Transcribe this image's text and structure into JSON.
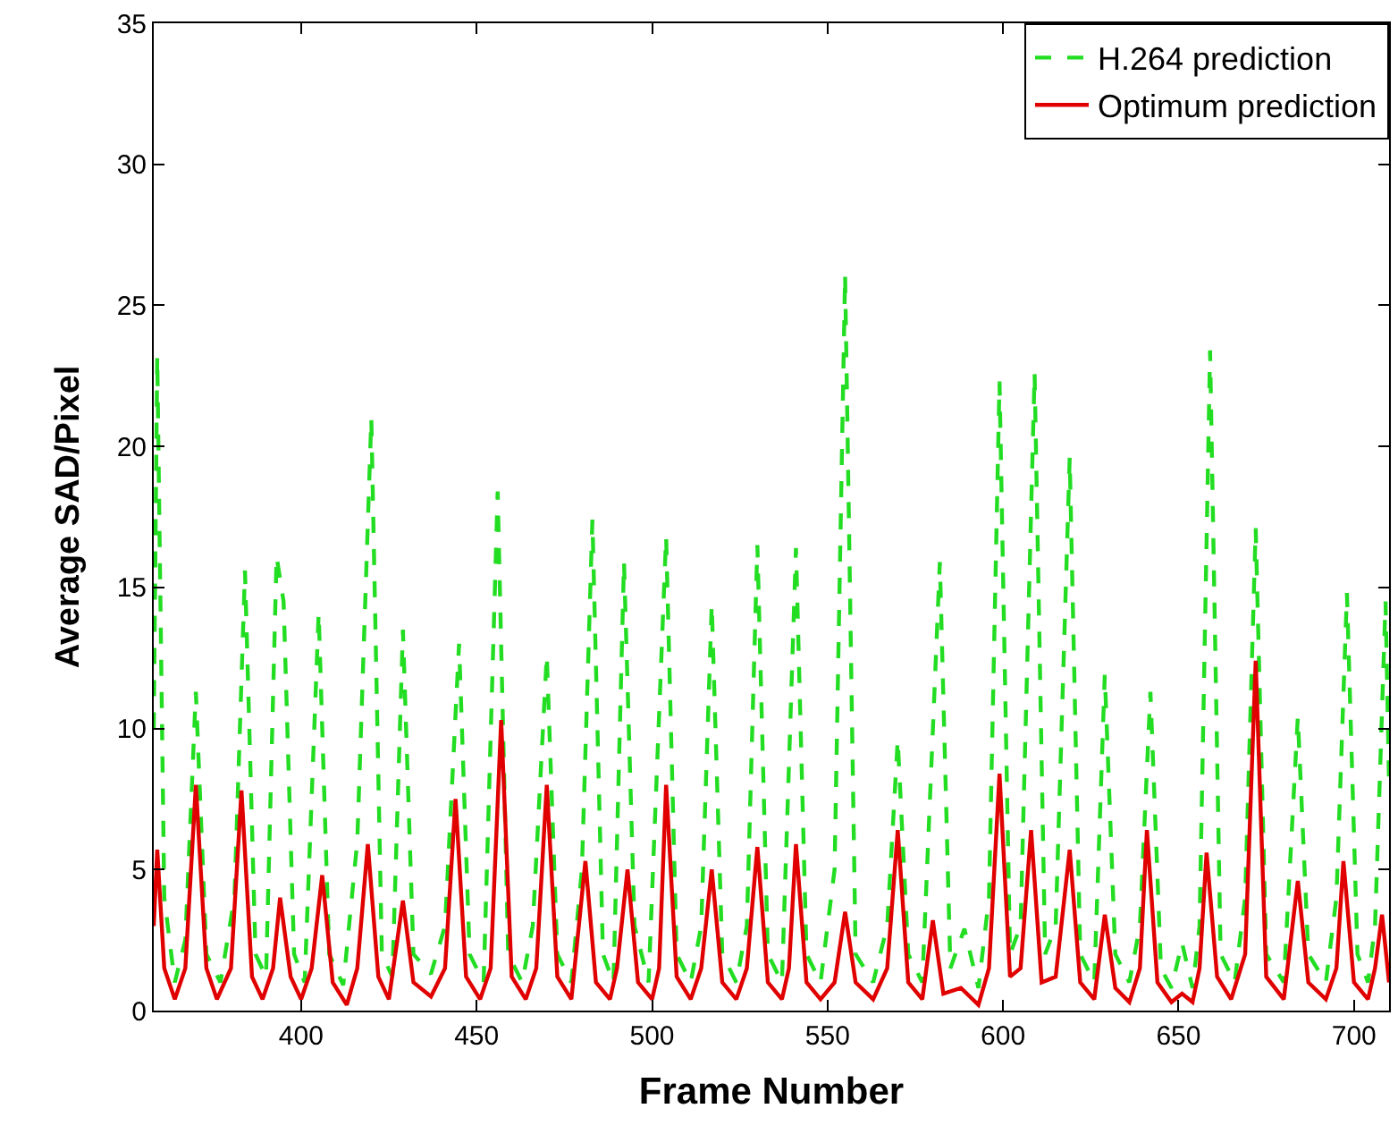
{
  "chart_data": {
    "type": "line",
    "xlabel": "Frame Number",
    "ylabel": "Average SAD/Pixel",
    "xlim": [
      358,
      710
    ],
    "xticks": [
      400,
      450,
      500,
      550,
      600,
      650,
      700
    ],
    "ylim": [
      0,
      35
    ],
    "yticks": [
      0,
      5,
      10,
      15,
      20,
      25,
      30,
      35
    ],
    "legend": "top right",
    "marker": "none",
    "series": [
      {
        "name": "H.264 prediction",
        "color": "#22dd22",
        "line_style": "dashed",
        "x": [
          358,
          359,
          361,
          364,
          367,
          370,
          373,
          377,
          381,
          384,
          387,
          390,
          393,
          395,
          398,
          401,
          405,
          408,
          412,
          416,
          420,
          423,
          426,
          429,
          432,
          437,
          441,
          445,
          448,
          452,
          456,
          459,
          463,
          466,
          470,
          473,
          477,
          480,
          483,
          486,
          489,
          492,
          495,
          499,
          504,
          507,
          511,
          514,
          517,
          520,
          524,
          527,
          530,
          533,
          537,
          541,
          544,
          548,
          552,
          555,
          558,
          563,
          567,
          570,
          573,
          577,
          582,
          585,
          589,
          593,
          596,
          599,
          602,
          605,
          609,
          612,
          615,
          619,
          622,
          626,
          629,
          632,
          636,
          639,
          642,
          645,
          648,
          651,
          654,
          656,
          659,
          662,
          666,
          669,
          672,
          675,
          680,
          684,
          687,
          692,
          695,
          698,
          701,
          704,
          706,
          709,
          710
        ],
        "values": [
          10,
          23.2,
          4,
          1.0,
          2.5,
          11.3,
          2,
          1.0,
          4,
          15.6,
          2,
          1.2,
          16.1,
          14.5,
          2,
          1.0,
          14.1,
          2,
          0.9,
          6,
          21.0,
          2,
          1.2,
          13.5,
          2,
          1.3,
          3,
          13.0,
          2,
          1.0,
          18.4,
          2,
          1.0,
          3,
          12.6,
          2,
          1.0,
          5,
          17.4,
          2,
          1.0,
          15.9,
          3,
          1.0,
          16.8,
          2,
          1.0,
          3,
          14.4,
          2,
          1.0,
          3,
          16.5,
          2,
          1.0,
          16.4,
          2,
          1.0,
          5,
          26.1,
          2,
          1.0,
          3,
          9.6,
          2,
          1.0,
          15.9,
          1.5,
          2.9,
          0.8,
          4,
          22.3,
          2,
          3,
          22.6,
          2,
          3,
          19.6,
          2,
          1.0,
          11.9,
          2,
          1.0,
          3,
          11.3,
          1.5,
          0.8,
          2.4,
          0.8,
          3,
          23.4,
          2,
          1.0,
          4,
          17.1,
          2,
          1.0,
          10.4,
          2,
          1.0,
          4,
          14.8,
          2,
          1.0,
          3,
          14.5,
          8
        ]
      },
      {
        "name": "Optimum prediction",
        "color": "#e00000",
        "line_style": "solid",
        "x": [
          358,
          359,
          361,
          364,
          367,
          370,
          373,
          376,
          380,
          383,
          386,
          389,
          392,
          394,
          397,
          400,
          403,
          406,
          409,
          413,
          416,
          419,
          422,
          425,
          429,
          432,
          437,
          441,
          444,
          447,
          451,
          454,
          457,
          460,
          464,
          467,
          470,
          473,
          477,
          481,
          484,
          488,
          490,
          493,
          496,
          500,
          502,
          504,
          507,
          511,
          514,
          517,
          520,
          524,
          527,
          530,
          533,
          537,
          539,
          541,
          544,
          548,
          552,
          555,
          558,
          563,
          567,
          570,
          573,
          577,
          580,
          583,
          588,
          593,
          596,
          599,
          602,
          605,
          608,
          611,
          615,
          619,
          622,
          626,
          629,
          632,
          636,
          639,
          641,
          644,
          648,
          651,
          654,
          656,
          658,
          661,
          665,
          669,
          672,
          675,
          680,
          684,
          687,
          692,
          695,
          697,
          700,
          704,
          706,
          708,
          710
        ],
        "values": [
          3,
          5.7,
          1.5,
          0.4,
          1.5,
          8.0,
          1.5,
          0.4,
          1.5,
          7.8,
          1.2,
          0.4,
          1.5,
          4.0,
          1.2,
          0.4,
          1.5,
          4.8,
          1,
          0.2,
          1.5,
          5.9,
          1.2,
          0.4,
          3.9,
          1,
          0.5,
          1.5,
          7.5,
          1.2,
          0.4,
          1.5,
          10.3,
          1.2,
          0.4,
          1.5,
          8.0,
          1.2,
          0.4,
          5.3,
          1,
          0.4,
          1.5,
          5.0,
          1,
          0.4,
          1.5,
          8.0,
          1.2,
          0.4,
          1.5,
          5.0,
          1,
          0.4,
          1.5,
          5.8,
          1,
          0.4,
          1.5,
          5.9,
          1,
          0.4,
          1,
          3.5,
          1,
          0.4,
          1.5,
          6.4,
          1,
          0.4,
          3.2,
          0.6,
          0.8,
          0.2,
          1.5,
          8.4,
          1.2,
          1.5,
          6.4,
          1,
          1.2,
          5.7,
          1,
          0.4,
          3.4,
          0.8,
          0.3,
          1.5,
          6.4,
          1,
          0.3,
          0.6,
          0.3,
          1.5,
          5.6,
          1.2,
          0.4,
          2,
          12.4,
          1.2,
          0.4,
          4.6,
          1,
          0.4,
          1.5,
          5.3,
          1,
          0.4,
          1.5,
          3.4,
          1
        ]
      }
    ]
  }
}
